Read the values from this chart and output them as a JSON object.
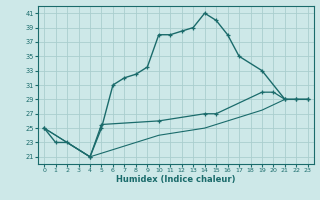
{
  "xlabel": "Humidex (Indice chaleur)",
  "bg_color": "#cde8e8",
  "grid_color": "#aacece",
  "line_color": "#1a6b6b",
  "xlim": [
    -0.5,
    23.5
  ],
  "ylim": [
    20,
    42
  ],
  "xticks": [
    0,
    1,
    2,
    3,
    4,
    5,
    6,
    7,
    8,
    9,
    10,
    11,
    12,
    13,
    14,
    15,
    16,
    17,
    18,
    19,
    20,
    21,
    22,
    23
  ],
  "yticks": [
    21,
    23,
    25,
    27,
    29,
    31,
    33,
    35,
    37,
    39,
    41
  ],
  "line1_x": [
    0,
    1,
    2,
    4,
    5,
    6,
    7,
    8,
    9,
    10,
    11,
    12,
    13,
    14,
    15,
    16,
    17,
    19,
    21,
    22,
    23
  ],
  "line1_y": [
    25,
    23,
    23,
    21,
    25,
    31,
    32,
    32.5,
    33.5,
    38,
    38,
    38.5,
    39,
    41,
    40,
    38,
    35,
    33,
    29,
    29,
    29
  ],
  "line2_x": [
    0,
    4,
    5,
    10,
    14,
    15,
    19,
    20,
    21,
    22,
    23
  ],
  "line2_y": [
    25,
    21,
    25.5,
    26,
    27,
    27,
    30,
    30,
    29,
    29,
    29
  ],
  "line3_x": [
    0,
    4,
    10,
    14,
    19,
    21,
    22,
    23
  ],
  "line3_y": [
    25,
    21,
    24,
    25,
    27.5,
    29,
    29,
    29
  ]
}
